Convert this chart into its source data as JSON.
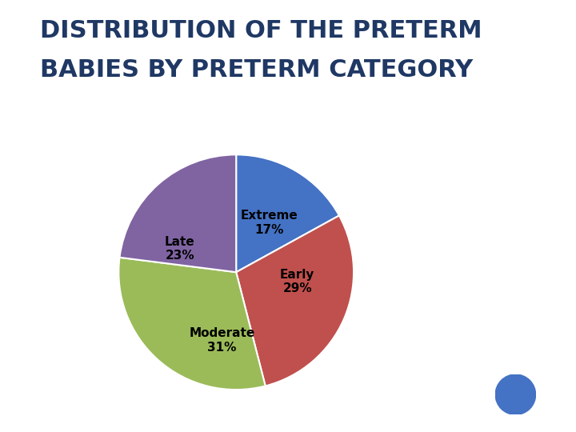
{
  "title_line1": "Distribution of the Preterm",
  "title_line2": "Babies by Preterm Category",
  "slices": [
    "Extreme",
    "Early",
    "Moderate",
    "Late"
  ],
  "values": [
    17,
    29,
    31,
    23
  ],
  "colors": [
    "#4472C4",
    "#C0504D",
    "#9BBB59",
    "#8064A2"
  ],
  "label_texts": [
    "Extreme\n17%",
    "Early\n29%",
    "Moderate\n31%",
    "Late\n23%"
  ],
  "startangle": 90,
  "background_color": "#FFFFFF",
  "title_color": "#1F3864",
  "label_fontsize": 11,
  "title_fontsize": 22,
  "dot_color": "#4472C4"
}
